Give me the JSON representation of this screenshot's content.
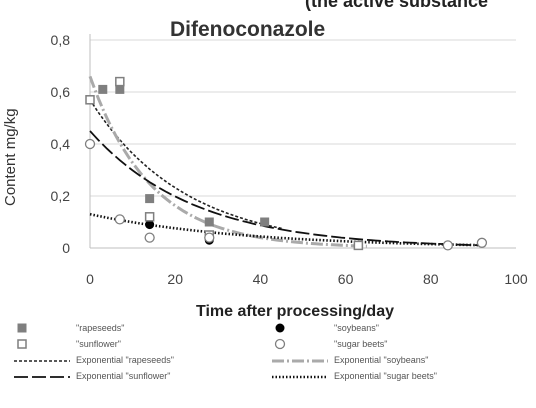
{
  "chart_data": {
    "type": "scatter",
    "top_cut_text": "(the active substance",
    "title": "Difenoconazole",
    "xlabel": "Time after processing/day",
    "ylabel": "Content mg/kg",
    "xlim": [
      0,
      100
    ],
    "ylim": [
      0,
      0.8
    ],
    "x_ticks": [
      "0",
      "20",
      "40",
      "60",
      "80",
      "100"
    ],
    "y_ticks": [
      "0",
      "0,2",
      "0,4",
      "0,6",
      "0,8"
    ],
    "grid": "horizontal",
    "legend_position": "bottom",
    "series": [
      {
        "name": "\"rapeseeds\"",
        "marker": "filled-square",
        "color": "#7f7f7f",
        "x": [
          0,
          3,
          7,
          14,
          28,
          41
        ],
        "y": [
          0.57,
          0.61,
          0.61,
          0.19,
          0.1,
          0.1
        ]
      },
      {
        "name": "\"soybeans\"",
        "marker": "filled-circle",
        "color": "#000000",
        "x": [
          14,
          28,
          63
        ],
        "y": [
          0.09,
          0.03,
          0.01
        ]
      },
      {
        "name": "\"sunflower\"",
        "marker": "open-square",
        "color": "#7f7f7f",
        "x": [
          0,
          7,
          14,
          28,
          63
        ],
        "y": [
          0.57,
          0.64,
          0.12,
          0.05,
          0.01
        ]
      },
      {
        "name": "\"sugar beets\"",
        "marker": "open-circle",
        "color": "#7f7f7f",
        "x": [
          0,
          7,
          14,
          28,
          84,
          92
        ],
        "y": [
          0.4,
          0.11,
          0.04,
          0.04,
          0.01,
          0.02
        ]
      }
    ],
    "trendlines": [
      {
        "name": "Exponential \"rapeseeds\"",
        "style": "dashed-fine",
        "color": "#222222",
        "a": 0.57,
        "k": 0.045,
        "x_range": [
          0,
          45
        ]
      },
      {
        "name": "Exponential \"soybeans\"",
        "style": "dash-dot-gray",
        "color": "#aaaaaa",
        "a": 0.66,
        "k": 0.07,
        "x_range": [
          0,
          65
        ]
      },
      {
        "name": "Exponential \"sunflower\"",
        "style": "long-dash",
        "color": "#111111",
        "a": 0.45,
        "k": 0.041,
        "x_range": [
          0,
          92
        ]
      },
      {
        "name": "Exponential \"sugar beets\"",
        "style": "dotted",
        "color": "#111111",
        "a": 0.13,
        "k": 0.027,
        "x_range": [
          0,
          92
        ]
      }
    ]
  }
}
